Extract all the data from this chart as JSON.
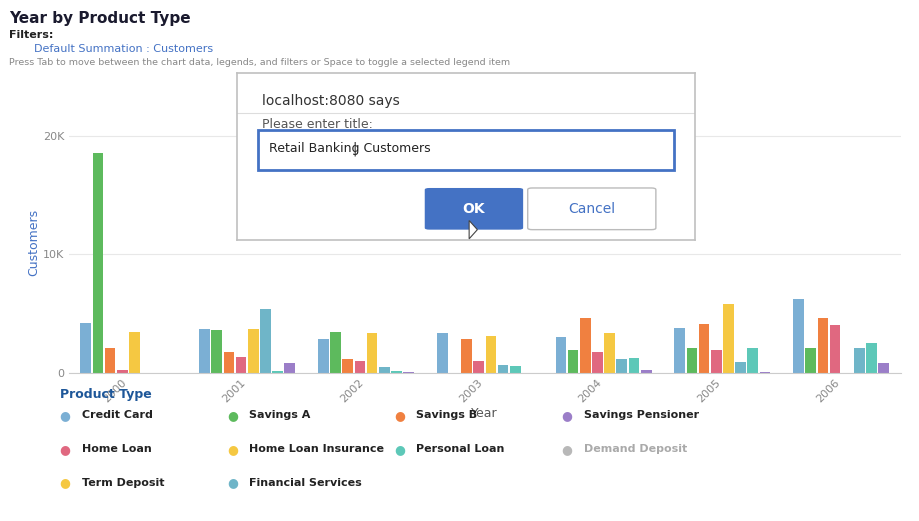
{
  "title": "Year by Product Type",
  "filters_label": "Filters:",
  "filters_value": "Default Summation : Customers",
  "tab_hint": "Press Tab to move between the chart data, legends, and filters or Space to toggle a selected legend item",
  "xlabel": "Year",
  "ylabel": "Customers",
  "years": [
    "2000",
    "2001",
    "2002",
    "2003",
    "2004",
    "2005",
    "2006"
  ],
  "colors": {
    "Credit Card": "#7bafd4",
    "Home Loan": "#e06880",
    "Term Deposit": "#f5c842",
    "Savings A": "#5dba5d",
    "Home Loan Insurance": "#f5c842",
    "Financial Services": "#6fb5c8",
    "Savings B": "#f08040",
    "Personal Loan": "#5dc8b8",
    "Savings Pensioner": "#9b7ec8",
    "Demand Deposit": "#b8b8b8"
  },
  "data": {
    "Credit Card": [
      4200,
      3700,
      2800,
      3300,
      3000,
      3800,
      6200
    ],
    "Savings A": [
      18500,
      3600,
      3400,
      0,
      1900,
      2100,
      2100
    ],
    "Savings B": [
      2100,
      1700,
      1100,
      2800,
      4600,
      4100,
      4600
    ],
    "Home Loan": [
      250,
      1300,
      1000,
      1000,
      1700,
      1900,
      4000
    ],
    "Home Loan Insurance": [
      3400,
      3700,
      3300,
      3100,
      3300,
      5800,
      0
    ],
    "Financial Services": [
      0,
      5400,
      500,
      600,
      1100,
      900,
      2100
    ],
    "Personal Loan": [
      0,
      150,
      150,
      550,
      1200,
      2100,
      2500
    ],
    "Savings Pensioner": [
      0,
      800,
      80,
      0,
      250,
      80,
      800
    ],
    "Demand Deposit": [
      0,
      0,
      0,
      0,
      0,
      0,
      0
    ]
  },
  "ylim": [
    0,
    22000
  ],
  "yticks": [
    0,
    10000,
    20000
  ],
  "ytick_labels": [
    "0",
    "10K",
    "20K"
  ],
  "bg_color": "#ffffff",
  "grid_color": "#e8e8e8",
  "title_color": "#1a1a2e",
  "ylabel_color": "#4472c4",
  "xlabel_color": "#555555",
  "tick_color": "#888888",
  "filter_label_color": "#222222",
  "filter_value_color": "#4472c4",
  "tab_hint_color": "#888888",
  "dialog_title": "localhost:8080 says",
  "dialog_prompt": "Please enter title:",
  "dialog_input": "Retail Banking Customers",
  "ok_label": "OK",
  "cancel_label": "Cancel",
  "legend_title": "Product Type",
  "legend_title_color": "#1e5799",
  "legend_layout": [
    [
      "Credit Card",
      "Savings A",
      "Savings B",
      "Savings Pensioner"
    ],
    [
      "Home Loan",
      "Home Loan Insurance",
      "Personal Loan",
      "Demand Deposit"
    ],
    [
      "Term Deposit",
      "Financial Services",
      "",
      ""
    ]
  ]
}
